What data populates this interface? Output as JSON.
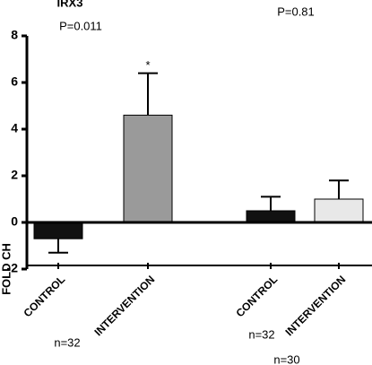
{
  "chart_data": {
    "type": "bar",
    "title": "IRX3",
    "y_label": "FOLD CH",
    "p_values": [
      "P=0.011",
      "P=0.81"
    ],
    "categories": [
      "CONTROL",
      "INTERVENTION",
      "CONTROL",
      "INTERVENTION"
    ],
    "values": [
      -0.7,
      4.6,
      0.5,
      1.0
    ],
    "errors": [
      0.6,
      1.8,
      0.6,
      0.8
    ],
    "colors": [
      "#111111",
      "#9a9a9a",
      "#111111",
      "#e8e8e8"
    ],
    "significance": "*",
    "n_labels": [
      "n=32",
      "n=32",
      "n=30"
    ],
    "ylim": [
      -2,
      8
    ],
    "yticks": [
      -2,
      0,
      2,
      4,
      6,
      8
    ]
  }
}
